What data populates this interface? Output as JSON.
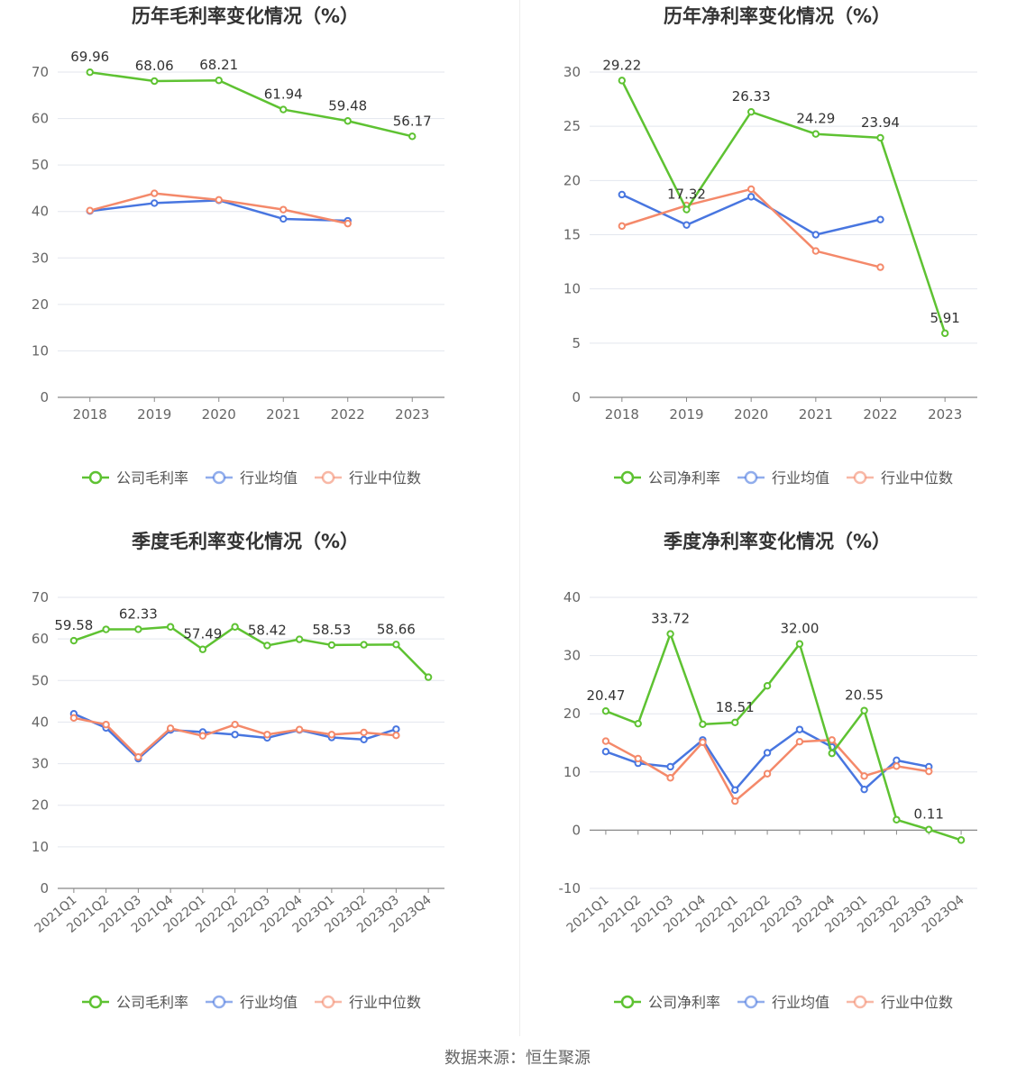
{
  "colors": {
    "company": "#5ec232",
    "industry_avg": "#4876e0",
    "industry_median": "#f4896a",
    "grid": "#e3e6ee",
    "axis": "#666666"
  },
  "source": "数据来源：恒生聚源",
  "chart_data": [
    {
      "type": "line",
      "title": "历年毛利率变化情况（%）",
      "categories": [
        "2018",
        "2019",
        "2020",
        "2021",
        "2022",
        "2023"
      ],
      "ylim": [
        0,
        70
      ],
      "yticks": [
        0,
        10,
        20,
        30,
        40,
        50,
        60,
        70
      ],
      "series": [
        {
          "name": "公司毛利率",
          "values": [
            69.96,
            68.06,
            68.21,
            61.94,
            59.48,
            56.17
          ],
          "labels": [
            "69.96",
            "68.06",
            "68.21",
            "61.94",
            "59.48",
            "56.17"
          ]
        },
        {
          "name": "行业均值",
          "values": [
            40.1,
            41.8,
            42.4,
            38.4,
            38.0,
            null
          ]
        },
        {
          "name": "行业中位数",
          "values": [
            40.2,
            43.9,
            42.5,
            40.4,
            37.4,
            null
          ]
        }
      ],
      "grid": true,
      "legend": "bottom"
    },
    {
      "type": "line",
      "title": "历年净利率变化情况（%）",
      "categories": [
        "2018",
        "2019",
        "2020",
        "2021",
        "2022",
        "2023"
      ],
      "ylim": [
        0,
        30
      ],
      "yticks": [
        0,
        5,
        10,
        15,
        20,
        25,
        30
      ],
      "series": [
        {
          "name": "公司净利率",
          "values": [
            29.22,
            17.32,
            26.33,
            24.29,
            23.94,
            5.91
          ],
          "labels": [
            "29.22",
            "17.32",
            "26.33",
            "24.29",
            "23.94",
            "5.91"
          ]
        },
        {
          "name": "行业均值",
          "values": [
            18.7,
            15.9,
            18.5,
            15.0,
            16.4,
            null
          ]
        },
        {
          "name": "行业中位数",
          "values": [
            15.8,
            17.7,
            19.2,
            13.5,
            12.0,
            null
          ]
        }
      ],
      "grid": true,
      "legend": "bottom"
    },
    {
      "type": "line",
      "title": "季度毛利率变化情况（%）",
      "categories": [
        "2021Q1",
        "2021Q2",
        "2021Q3",
        "2021Q4",
        "2022Q1",
        "2022Q2",
        "2022Q3",
        "2022Q4",
        "2023Q1",
        "2023Q2",
        "2023Q3",
        "2023Q4"
      ],
      "ylim": [
        0,
        70
      ],
      "yticks": [
        0,
        10,
        20,
        30,
        40,
        50,
        60,
        70
      ],
      "series": [
        {
          "name": "公司毛利率",
          "values": [
            59.58,
            62.3,
            62.33,
            62.9,
            57.49,
            62.9,
            58.42,
            59.9,
            58.53,
            58.6,
            58.66,
            50.8
          ],
          "labels": [
            "59.58",
            "",
            "62.33",
            "",
            "57.49",
            "",
            "58.42",
            "",
            "58.53",
            "",
            "58.66",
            ""
          ]
        },
        {
          "name": "行业均值",
          "values": [
            42.0,
            38.6,
            31.2,
            38.1,
            37.6,
            37.0,
            36.2,
            38.1,
            36.3,
            35.8,
            38.3,
            null
          ]
        },
        {
          "name": "行业中位数",
          "values": [
            41.0,
            39.4,
            31.6,
            38.5,
            36.7,
            39.4,
            37.0,
            38.2,
            37.0,
            37.5,
            36.8,
            null
          ]
        }
      ],
      "grid": true,
      "legend": "bottom"
    },
    {
      "type": "line",
      "title": "季度净利率变化情况（%）",
      "categories": [
        "2021Q1",
        "2021Q2",
        "2021Q3",
        "2021Q4",
        "2022Q1",
        "2022Q2",
        "2022Q3",
        "2022Q4",
        "2023Q1",
        "2023Q2",
        "2023Q3",
        "2023Q4"
      ],
      "ylim": [
        -10,
        40
      ],
      "yticks": [
        -10,
        0,
        10,
        20,
        30,
        40
      ],
      "series": [
        {
          "name": "公司净利率",
          "values": [
            20.47,
            18.3,
            33.72,
            18.2,
            18.51,
            24.8,
            32.0,
            13.2,
            20.55,
            1.8,
            0.11,
            -1.7
          ],
          "labels": [
            "20.47",
            "",
            "33.72",
            "",
            "18.51",
            "",
            "32.00",
            "",
            "20.55",
            "",
            "0.11",
            ""
          ]
        },
        {
          "name": "行业均值",
          "values": [
            13.5,
            11.5,
            10.9,
            15.5,
            6.9,
            13.3,
            17.3,
            14.3,
            7.0,
            12.0,
            10.9,
            null
          ]
        },
        {
          "name": "行业中位数",
          "values": [
            15.3,
            12.3,
            9.0,
            15.1,
            5.0,
            9.7,
            15.2,
            15.5,
            9.3,
            11.0,
            10.1,
            null
          ]
        }
      ],
      "grid": true,
      "legend": "bottom"
    }
  ]
}
